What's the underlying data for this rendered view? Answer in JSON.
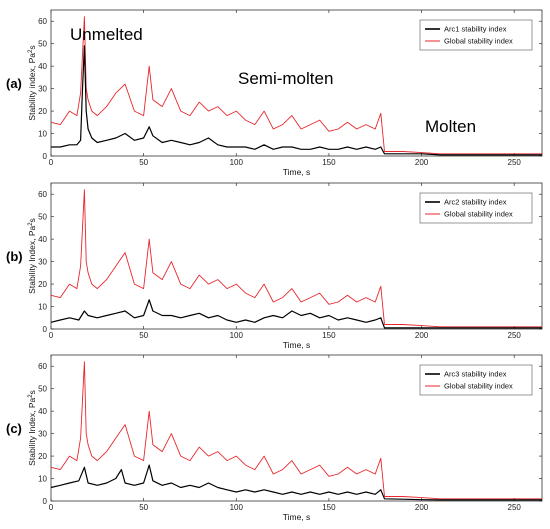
{
  "chart_data": [
    {
      "type": "line",
      "panel_label": "(a)",
      "xlabel": "Time, s",
      "ylabel": "Stability index, Pa",
      "ylabel_sup": "2",
      "ylabel_suffix": "s",
      "xlim": [
        0,
        265
      ],
      "ylim": [
        0,
        65
      ],
      "xticks": [
        0,
        50,
        100,
        150,
        200,
        250
      ],
      "yticks": [
        0,
        10,
        20,
        30,
        40,
        50,
        60
      ],
      "legend_position": "top-right",
      "annotations": [
        "Unmelted",
        "Semi-molten",
        "Molten"
      ],
      "series": [
        {
          "name": "Arc1 stability index",
          "color": "#000000",
          "x": [
            0,
            5,
            10,
            14,
            16,
            17,
            18,
            19,
            20,
            22,
            25,
            30,
            35,
            40,
            45,
            50,
            53,
            55,
            60,
            65,
            70,
            75,
            80,
            85,
            90,
            95,
            100,
            105,
            110,
            115,
            120,
            125,
            130,
            135,
            140,
            145,
            150,
            155,
            160,
            165,
            170,
            175,
            178,
            180,
            190,
            200,
            210,
            220,
            230,
            240,
            250,
            260,
            265
          ],
          "y": [
            4,
            4,
            5,
            5,
            7,
            30,
            49,
            20,
            12,
            8,
            6,
            7,
            8,
            10,
            7,
            8,
            13,
            9,
            6,
            7,
            6,
            5,
            6,
            8,
            5,
            4,
            4,
            4,
            3,
            5,
            3,
            4,
            4,
            3,
            3,
            4,
            3,
            3,
            4,
            3,
            4,
            3,
            4,
            1,
            1,
            1,
            0.5,
            0.5,
            0.5,
            0.5,
            0.5,
            0.5,
            0.5
          ]
        },
        {
          "name": "Global stability index",
          "color": "#e8272c",
          "x": [
            0,
            5,
            10,
            14,
            16,
            17,
            18,
            19,
            20,
            22,
            25,
            30,
            35,
            40,
            45,
            50,
            53,
            55,
            60,
            65,
            70,
            75,
            80,
            85,
            90,
            95,
            100,
            105,
            110,
            115,
            120,
            125,
            130,
            135,
            140,
            145,
            150,
            155,
            160,
            165,
            170,
            175,
            178,
            180,
            190,
            200,
            210,
            220,
            230,
            240,
            250,
            260,
            265
          ],
          "y": [
            15,
            14,
            20,
            18,
            28,
            45,
            62,
            30,
            25,
            20,
            18,
            22,
            28,
            32,
            20,
            18,
            40,
            25,
            22,
            30,
            20,
            18,
            24,
            20,
            22,
            18,
            20,
            16,
            14,
            20,
            12,
            14,
            18,
            12,
            14,
            16,
            11,
            12,
            15,
            12,
            14,
            12,
            19,
            2,
            2,
            1.5,
            1,
            1,
            1,
            1,
            1,
            1,
            1
          ]
        }
      ]
    },
    {
      "type": "line",
      "panel_label": "(b)",
      "xlabel": "Time, s",
      "ylabel": "Stability Index, Pa",
      "ylabel_sup": "2",
      "ylabel_suffix": "s",
      "xlim": [
        0,
        265
      ],
      "ylim": [
        0,
        65
      ],
      "xticks": [
        0,
        50,
        100,
        150,
        200,
        250
      ],
      "yticks": [
        0,
        10,
        20,
        30,
        40,
        50,
        60
      ],
      "legend_position": "top-right",
      "series": [
        {
          "name": "Arc2 stability index",
          "color": "#000000",
          "x": [
            0,
            5,
            10,
            15,
            18,
            20,
            25,
            30,
            35,
            40,
            45,
            50,
            53,
            55,
            60,
            65,
            70,
            75,
            80,
            85,
            90,
            95,
            100,
            105,
            110,
            115,
            120,
            125,
            130,
            135,
            140,
            145,
            150,
            155,
            160,
            165,
            170,
            175,
            178,
            180,
            190,
            200,
            210,
            220,
            230,
            240,
            250,
            260,
            265
          ],
          "y": [
            3,
            4,
            5,
            4,
            8,
            6,
            5,
            6,
            7,
            8,
            5,
            6,
            13,
            8,
            6,
            6,
            5,
            6,
            7,
            5,
            6,
            4,
            3,
            4,
            3,
            5,
            6,
            5,
            8,
            6,
            7,
            5,
            6,
            4,
            5,
            4,
            3,
            4,
            5,
            0.5,
            0.5,
            0.5,
            0.5,
            0.5,
            0.5,
            0.5,
            0.5,
            0.5,
            0.5
          ]
        },
        {
          "name": "Global stability index",
          "color": "#e8272c",
          "x": [
            0,
            5,
            10,
            14,
            16,
            17,
            18,
            19,
            20,
            22,
            25,
            30,
            35,
            40,
            45,
            50,
            53,
            55,
            60,
            65,
            70,
            75,
            80,
            85,
            90,
            95,
            100,
            105,
            110,
            115,
            120,
            125,
            130,
            135,
            140,
            145,
            150,
            155,
            160,
            165,
            170,
            175,
            178,
            180,
            190,
            200,
            210,
            220,
            230,
            240,
            250,
            260,
            265
          ],
          "y": [
            15,
            14,
            20,
            18,
            28,
            45,
            62,
            30,
            25,
            20,
            18,
            22,
            28,
            34,
            20,
            18,
            40,
            25,
            22,
            30,
            20,
            18,
            24,
            20,
            22,
            18,
            20,
            16,
            14,
            20,
            12,
            14,
            18,
            12,
            14,
            16,
            11,
            12,
            15,
            12,
            14,
            12,
            19,
            2,
            2,
            1.5,
            1,
            1,
            1,
            1,
            1,
            1,
            1
          ]
        }
      ]
    },
    {
      "type": "line",
      "panel_label": "(c)",
      "xlabel": "Time, s",
      "ylabel": "Stability Index, Pa",
      "ylabel_sup": "2",
      "ylabel_suffix": "s",
      "xlim": [
        0,
        265
      ],
      "ylim": [
        0,
        65
      ],
      "xticks": [
        0,
        50,
        100,
        150,
        200,
        250
      ],
      "yticks": [
        0,
        10,
        20,
        30,
        40,
        50,
        60
      ],
      "legend_position": "top-right",
      "series": [
        {
          "name": "Arc3 stability index",
          "color": "#000000",
          "x": [
            0,
            5,
            10,
            15,
            18,
            20,
            25,
            30,
            35,
            38,
            40,
            45,
            50,
            53,
            55,
            60,
            65,
            70,
            75,
            80,
            85,
            90,
            95,
            100,
            105,
            110,
            115,
            120,
            125,
            130,
            135,
            140,
            145,
            150,
            155,
            160,
            165,
            170,
            175,
            178,
            180,
            190,
            200,
            210,
            220,
            230,
            240,
            250,
            260,
            265
          ],
          "y": [
            6,
            7,
            8,
            9,
            15,
            8,
            7,
            8,
            10,
            14,
            8,
            7,
            8,
            16,
            9,
            7,
            8,
            6,
            7,
            6,
            8,
            6,
            5,
            4,
            5,
            4,
            5,
            4,
            3,
            4,
            3,
            4,
            3,
            4,
            3,
            4,
            3,
            4,
            3,
            5,
            1,
            0.8,
            0.6,
            0.5,
            0.5,
            0.5,
            0.5,
            0.5,
            0.5,
            0.5
          ]
        },
        {
          "name": "Global stability index",
          "color": "#e8272c",
          "x": [
            0,
            5,
            10,
            14,
            16,
            17,
            18,
            19,
            20,
            22,
            25,
            30,
            35,
            40,
            45,
            50,
            53,
            55,
            60,
            65,
            70,
            75,
            80,
            85,
            90,
            95,
            100,
            105,
            110,
            115,
            120,
            125,
            130,
            135,
            140,
            145,
            150,
            155,
            160,
            165,
            170,
            175,
            178,
            180,
            190,
            200,
            210,
            220,
            230,
            240,
            250,
            260,
            265
          ],
          "y": [
            15,
            14,
            20,
            18,
            28,
            45,
            62,
            30,
            25,
            20,
            18,
            22,
            28,
            34,
            20,
            18,
            40,
            25,
            22,
            30,
            20,
            18,
            24,
            20,
            22,
            18,
            20,
            16,
            14,
            20,
            12,
            14,
            18,
            12,
            14,
            16,
            11,
            12,
            15,
            12,
            14,
            12,
            19,
            2,
            2,
            1.5,
            1,
            1,
            1,
            1,
            1,
            1,
            1
          ]
        }
      ]
    }
  ]
}
